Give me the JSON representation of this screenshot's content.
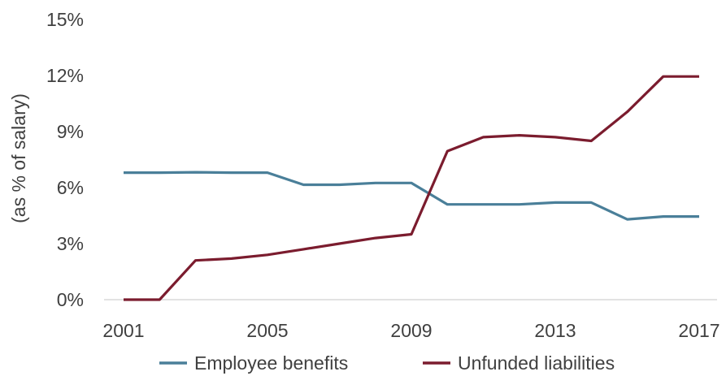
{
  "chart_data": {
    "type": "line",
    "title": "",
    "xlabel": "",
    "ylabel": "(as % of salary)",
    "x": [
      2001,
      2002,
      2003,
      2004,
      2005,
      2006,
      2007,
      2008,
      2009,
      2010,
      2011,
      2012,
      2013,
      2014,
      2015,
      2016,
      2017
    ],
    "xticks": [
      2001,
      2005,
      2009,
      2013,
      2017
    ],
    "xtick_labels": [
      "2001",
      "2005",
      "2009",
      "2013",
      "2017"
    ],
    "ylim": [
      0,
      15
    ],
    "yticks": [
      0,
      3,
      6,
      9,
      12,
      15
    ],
    "ytick_labels": [
      "0%",
      "3%",
      "6%",
      "9%",
      "12%",
      "15%"
    ],
    "grid": false,
    "legend_position": "bottom",
    "series": [
      {
        "name": "Employee benefits",
        "color": "#4a7f99",
        "values": [
          6.8,
          6.8,
          6.82,
          6.8,
          6.8,
          6.15,
          6.15,
          6.25,
          6.25,
          5.1,
          5.1,
          5.1,
          5.2,
          5.2,
          4.3,
          4.45,
          4.45
        ]
      },
      {
        "name": "Unfunded liabilities",
        "color": "#7b1c2e",
        "values": [
          0.0,
          0.0,
          2.1,
          2.2,
          2.4,
          2.7,
          3.0,
          3.3,
          3.5,
          7.95,
          8.7,
          8.8,
          8.7,
          8.5,
          10.05,
          11.95,
          11.95
        ]
      }
    ]
  }
}
